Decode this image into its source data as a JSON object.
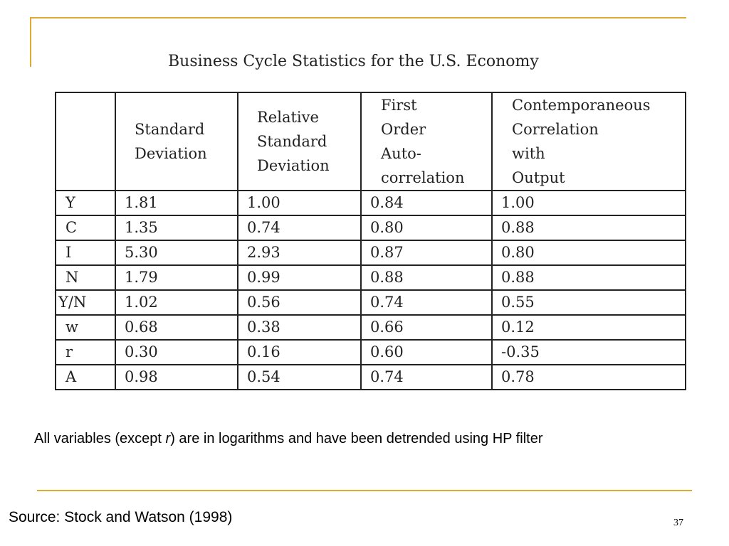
{
  "slide": {
    "title": "Business Cycle Statistics for the U.S. Economy",
    "columns": [
      {
        "lines": [
          "Standard",
          "Deviation"
        ]
      },
      {
        "lines": [
          "Relative",
          "Standard",
          "Deviation"
        ]
      },
      {
        "lines": [
          "First",
          "Order",
          "Auto-",
          "correlation"
        ]
      },
      {
        "lines": [
          "Contemporaneous",
          "Correlation",
          "with",
          "Output"
        ]
      }
    ],
    "rows": [
      {
        "variable": "Y",
        "values": [
          "1.81",
          "1.00",
          "0.84",
          "1.00"
        ]
      },
      {
        "variable": "C",
        "values": [
          "1.35",
          "0.74",
          "0.80",
          "0.88"
        ]
      },
      {
        "variable": "I",
        "values": [
          "5.30",
          "2.93",
          "0.87",
          "0.80"
        ]
      },
      {
        "variable": "N",
        "values": [
          "1.79",
          "0.99",
          "0.88",
          "0.88"
        ]
      },
      {
        "variable": "Y/N",
        "values": [
          "1.02",
          "0.56",
          "0.74",
          "0.55"
        ]
      },
      {
        "variable": "w",
        "values": [
          "0.68",
          "0.38",
          "0.66",
          "0.12"
        ]
      },
      {
        "variable": "r",
        "values": [
          "0.30",
          "0.16",
          "0.60",
          "-0.35"
        ]
      },
      {
        "variable": "A",
        "values": [
          "0.98",
          "0.54",
          "0.74",
          "0.78"
        ]
      }
    ],
    "note": {
      "prefix": "All variables (except ",
      "italic": "r",
      "suffix": ") are in logarithms and have been detrended using HP filter"
    },
    "source": "Source: Stock and Watson (1998)",
    "page_number": "37",
    "colors": {
      "accent": "#DDAA33"
    }
  }
}
